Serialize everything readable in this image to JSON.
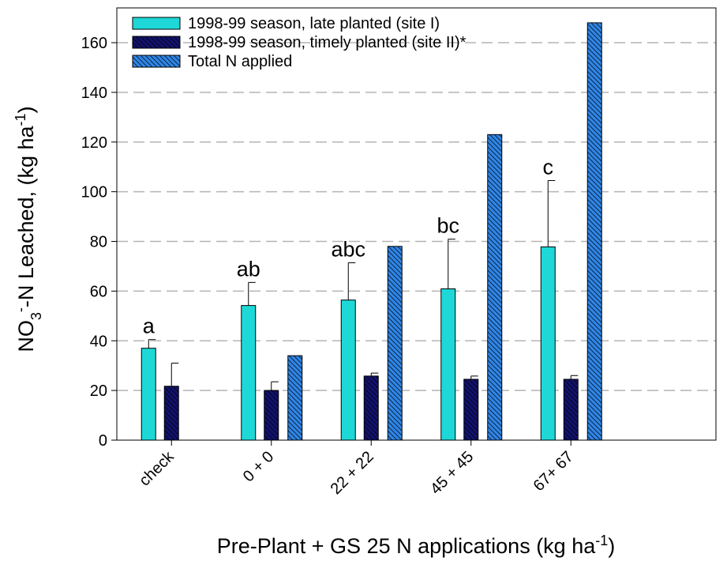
{
  "chart_data": {
    "type": "bar",
    "y_label_parts": [
      "NO",
      "3",
      "-",
      "-N Leached, (kg ha",
      "-1",
      ")"
    ],
    "x_label_parts": [
      "Pre-Plant + GS 25 N applications (kg ha",
      "-1",
      ")"
    ],
    "categories": [
      "check",
      "0 + 0",
      "22 + 22",
      "45 + 45",
      "67+ 67"
    ],
    "series": [
      {
        "name": "1998-99 season, late planted (site I)",
        "color": "#1ed8d8",
        "hatch": false,
        "values": [
          37,
          54.2,
          56.4,
          60.9,
          77.8
        ],
        "errors": [
          3.5,
          9.3,
          15,
          20,
          26.7
        ],
        "annotations": [
          "a",
          "ab",
          "abc",
          "bc",
          "c"
        ]
      },
      {
        "name": "1998-99 season, timely planted (site II)*",
        "color": "#12126e",
        "hatch": true,
        "values": [
          21.7,
          20,
          25.8,
          24.5,
          24.5
        ],
        "errors": [
          9.3,
          3.5,
          1.2,
          1.3,
          1.5
        ]
      },
      {
        "name": "Total N applied",
        "color": "#2f86e8",
        "hatch": true,
        "values": [
          null,
          34,
          78,
          123,
          168
        ]
      }
    ],
    "ylim": [
      0,
      174
    ],
    "yticks": [
      0,
      20,
      40,
      60,
      80,
      100,
      120,
      140,
      160
    ],
    "grid": true
  }
}
